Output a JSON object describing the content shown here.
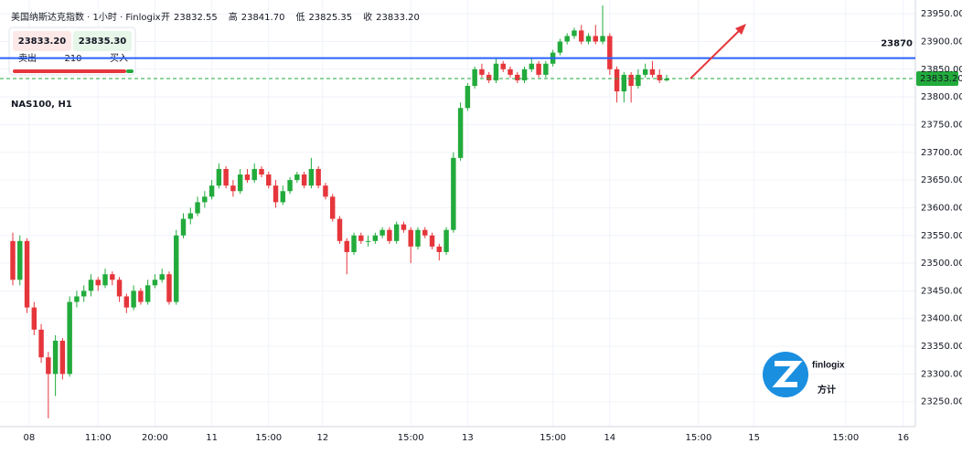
{
  "chart_data": {
    "type": "candlestick",
    "title": "NAS100, H1",
    "instrument": "美国纳斯达克指数 · 1小时 · Finlogix",
    "ohlc": [
      {
        "label": "开",
        "value": 23832.55,
        "text": "23832.55"
      },
      {
        "label": "高",
        "value": 23841.7,
        "text": "23841.70"
      },
      {
        "label": "低",
        "value": 23825.35,
        "text": "23825.35"
      },
      {
        "label": "收",
        "value": 23833.2,
        "text": "23833.20"
      }
    ],
    "trade_box": {
      "sell_price": "23833.20",
      "buy_price": "23835.30",
      "sell": "卖出",
      "quantity": "210",
      "buy": "买入"
    },
    "level": 23870,
    "level_color": "#2962ff",
    "last_price": {
      "value": 23833.2,
      "label": "23833.20"
    },
    "brand": {
      "name": "finlogix",
      "name_cn": "方计"
    },
    "up_color": "#22ab3c",
    "down_color": "#e5363c",
    "open": [
      23540,
      23470,
      23540,
      23420,
      23380,
      23330,
      23300,
      23360,
      23300,
      23430,
      23440,
      23450,
      23470,
      23460,
      23480,
      23470,
      23440,
      23420,
      23450,
      23430,
      23460,
      23470,
      23480,
      23430,
      23550,
      23580,
      23590,
      23610,
      23620,
      23640,
      23670,
      23640,
      23630,
      23660,
      23650,
      23670,
      23660,
      23640,
      23610,
      23630,
      23650,
      23660,
      23640,
      23670,
      23640,
      23620,
      23580,
      23540,
      23520,
      23550,
      23540,
      23540,
      23550,
      23560,
      23540,
      23570,
      23560,
      23530,
      23560,
      23550,
      23530,
      23520,
      23560,
      23690,
      23780,
      23820,
      23850,
      23840,
      23830,
      23860,
      23850,
      23840,
      23830,
      23850,
      23860,
      23840,
      23860,
      23880,
      23900,
      23910,
      23920,
      23900,
      23910,
      23900,
      23910,
      23850,
      23810,
      23840,
      23820,
      23840,
      23850,
      23840,
      23830
    ],
    "high": [
      23555,
      23550,
      23545,
      23430,
      23390,
      23340,
      23370,
      23365,
      23440,
      23450,
      23460,
      23480,
      23475,
      23490,
      23485,
      23475,
      23445,
      23460,
      23455,
      23470,
      23480,
      23490,
      23485,
      23560,
      23590,
      23600,
      23620,
      23630,
      23650,
      23680,
      23675,
      23650,
      23670,
      23670,
      23680,
      23675,
      23665,
      23650,
      23640,
      23655,
      23665,
      23665,
      23690,
      23675,
      23645,
      23625,
      23585,
      23545,
      23555,
      23555,
      23550,
      23555,
      23565,
      23565,
      23575,
      23575,
      23565,
      23565,
      23565,
      23555,
      23535,
      23565,
      23700,
      23790,
      23825,
      23855,
      23860,
      23845,
      23870,
      23865,
      23855,
      23845,
      23855,
      23870,
      23865,
      23865,
      23885,
      23905,
      23915,
      23925,
      23930,
      23915,
      23930,
      23965,
      23915,
      23855,
      23845,
      23845,
      23850,
      23860,
      23865,
      23850,
      23840
    ],
    "low": [
      23460,
      23460,
      23410,
      23370,
      23320,
      23220,
      23260,
      23290,
      23295,
      23420,
      23430,
      23440,
      23450,
      23455,
      23460,
      23430,
      23410,
      23415,
      23425,
      23425,
      23455,
      23465,
      23425,
      23425,
      23545,
      23570,
      23585,
      23600,
      23615,
      23635,
      23635,
      23620,
      23625,
      23645,
      23645,
      23655,
      23635,
      23600,
      23605,
      23625,
      23645,
      23635,
      23635,
      23635,
      23615,
      23575,
      23535,
      23480,
      23515,
      23535,
      23530,
      23535,
      23545,
      23535,
      23535,
      23555,
      23500,
      23525,
      23545,
      23525,
      23505,
      23515,
      23555,
      23685,
      23775,
      23815,
      23835,
      23825,
      23825,
      23845,
      23835,
      23825,
      23825,
      23845,
      23835,
      23835,
      23855,
      23875,
      23895,
      23905,
      23895,
      23895,
      23895,
      23895,
      23840,
      23790,
      23790,
      23790,
      23815,
      23835,
      23835,
      23825,
      23828
    ],
    "close": [
      23470,
      23540,
      23420,
      23380,
      23330,
      23300,
      23360,
      23300,
      23430,
      23440,
      23450,
      23470,
      23460,
      23480,
      23470,
      23440,
      23420,
      23450,
      23430,
      23460,
      23470,
      23480,
      23430,
      23550,
      23580,
      23590,
      23610,
      23620,
      23640,
      23670,
      23640,
      23630,
      23660,
      23650,
      23670,
      23660,
      23640,
      23610,
      23630,
      23650,
      23660,
      23640,
      23670,
      23640,
      23620,
      23580,
      23540,
      23520,
      23550,
      23540,
      23540,
      23550,
      23560,
      23540,
      23570,
      23560,
      23530,
      23560,
      23550,
      23530,
      23520,
      23560,
      23690,
      23780,
      23820,
      23850,
      23840,
      23830,
      23860,
      23850,
      23840,
      23830,
      23850,
      23860,
      23840,
      23860,
      23880,
      23900,
      23910,
      23920,
      23900,
      23910,
      23900,
      23910,
      23850,
      23810,
      23840,
      23820,
      23840,
      23850,
      23840,
      23830,
      23833
    ],
    "xlim": [
      -1.8,
      127
    ],
    "xticks": [
      {
        "value": 2.3,
        "label": "08"
      },
      {
        "value": 12,
        "label": "11:00"
      },
      {
        "value": 20,
        "label": "20:00"
      },
      {
        "value": 28,
        "label": "11"
      },
      {
        "value": 36,
        "label": "15:00"
      },
      {
        "value": 43.6,
        "label": "12"
      },
      {
        "value": 56,
        "label": "15:00"
      },
      {
        "value": 64,
        "label": "13"
      },
      {
        "value": 76,
        "label": "15:00"
      },
      {
        "value": 84,
        "label": "14"
      },
      {
        "value": 96.5,
        "label": "15:00"
      },
      {
        "value": 104.3,
        "label": "15"
      },
      {
        "value": 117.2,
        "label": "15:00"
      },
      {
        "value": 125.3,
        "label": "16"
      }
    ],
    "ylim": [
      23205,
      23975
    ],
    "yticks": [
      {
        "value": 23250,
        "label": "23250.00"
      },
      {
        "value": 23300,
        "label": "23300.00"
      },
      {
        "value": 23350,
        "label": "23350.00"
      },
      {
        "value": 23400,
        "label": "23400.00"
      },
      {
        "value": 23450,
        "label": "23450.00"
      },
      {
        "value": 23500,
        "label": "23500.00"
      },
      {
        "value": 23550,
        "label": "23550.00"
      },
      {
        "value": 23600,
        "label": "23600.00"
      },
      {
        "value": 23650,
        "label": "23650.00"
      },
      {
        "value": 23700,
        "label": "23700.00"
      },
      {
        "value": 23750,
        "label": "23750.00"
      },
      {
        "value": 23800,
        "label": "23800.00"
      },
      {
        "value": 23850,
        "label": "23850.00"
      },
      {
        "value": 23900,
        "label": "23900.00"
      },
      {
        "value": 23950,
        "label": "23950.00"
      }
    ],
    "grid": true
  }
}
